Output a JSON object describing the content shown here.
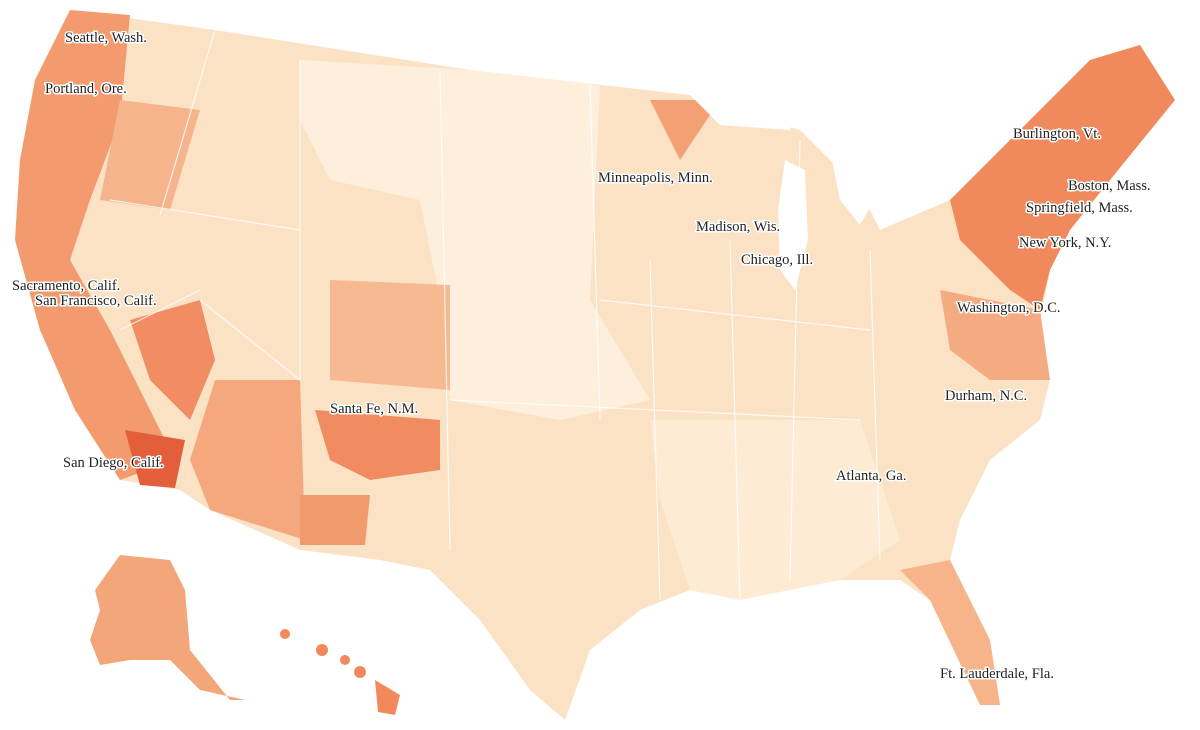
{
  "labels": [
    "Seattle, Wash.",
    "Portland, Ore.",
    "Sacramento, Calif.",
    "San Francisco, Calif.",
    "San Diego, Calif.",
    "Santa Fe, N.M.",
    "Minneapolis, Minn.",
    "Madison, Wis.",
    "Chicago, Ill.",
    "Burlington, Vt.",
    "Boston, Mass.",
    "Springfield, Mass.",
    "New York, N.Y.",
    "Washington, D.C.",
    "Durham, N.C.",
    "Atlanta, Ga.",
    "Ft. Lauderdale, Fla."
  ]
}
